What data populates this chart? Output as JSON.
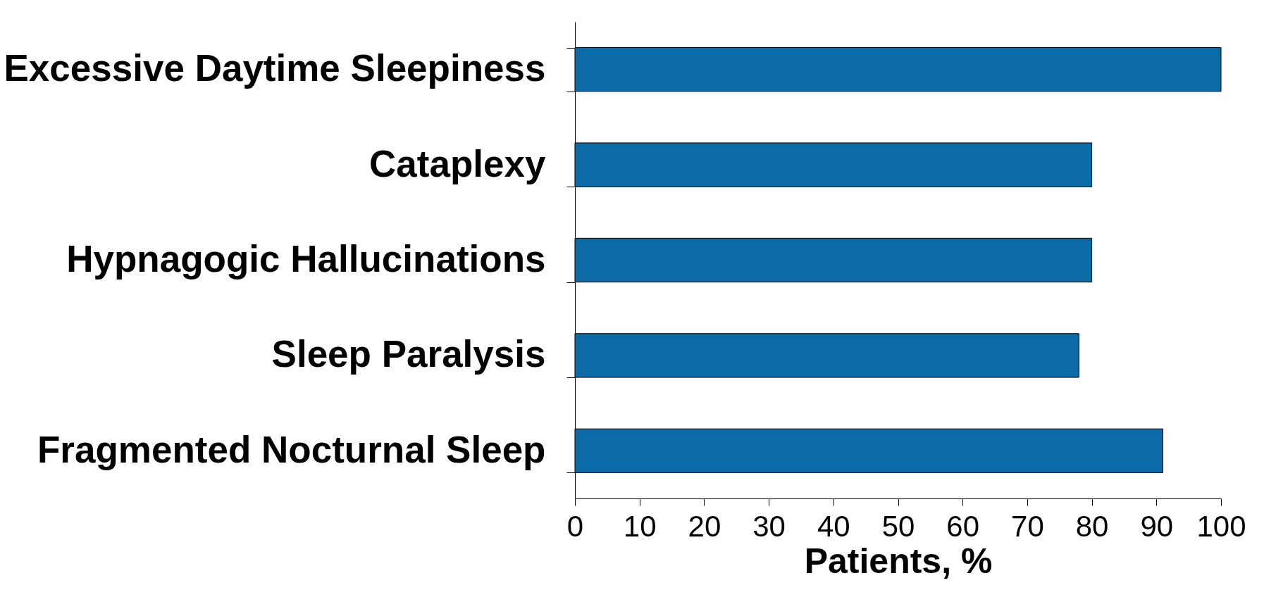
{
  "chart_data": {
    "type": "bar",
    "orientation": "horizontal",
    "xlabel": "Patients, %",
    "categories": [
      "Excessive Daytime Sleepiness",
      "Cataplexy",
      "Hypnagogic Hallucinations",
      "Sleep Paralysis",
      "Fragmented Nocturnal Sleep"
    ],
    "values": [
      100,
      80,
      80,
      78,
      91
    ],
    "color": "#0b6ba6",
    "xlim": [
      0,
      100
    ],
    "xticks": [
      0,
      10,
      20,
      30,
      40,
      50,
      60,
      70,
      80,
      90,
      100
    ],
    "grid": false
  }
}
